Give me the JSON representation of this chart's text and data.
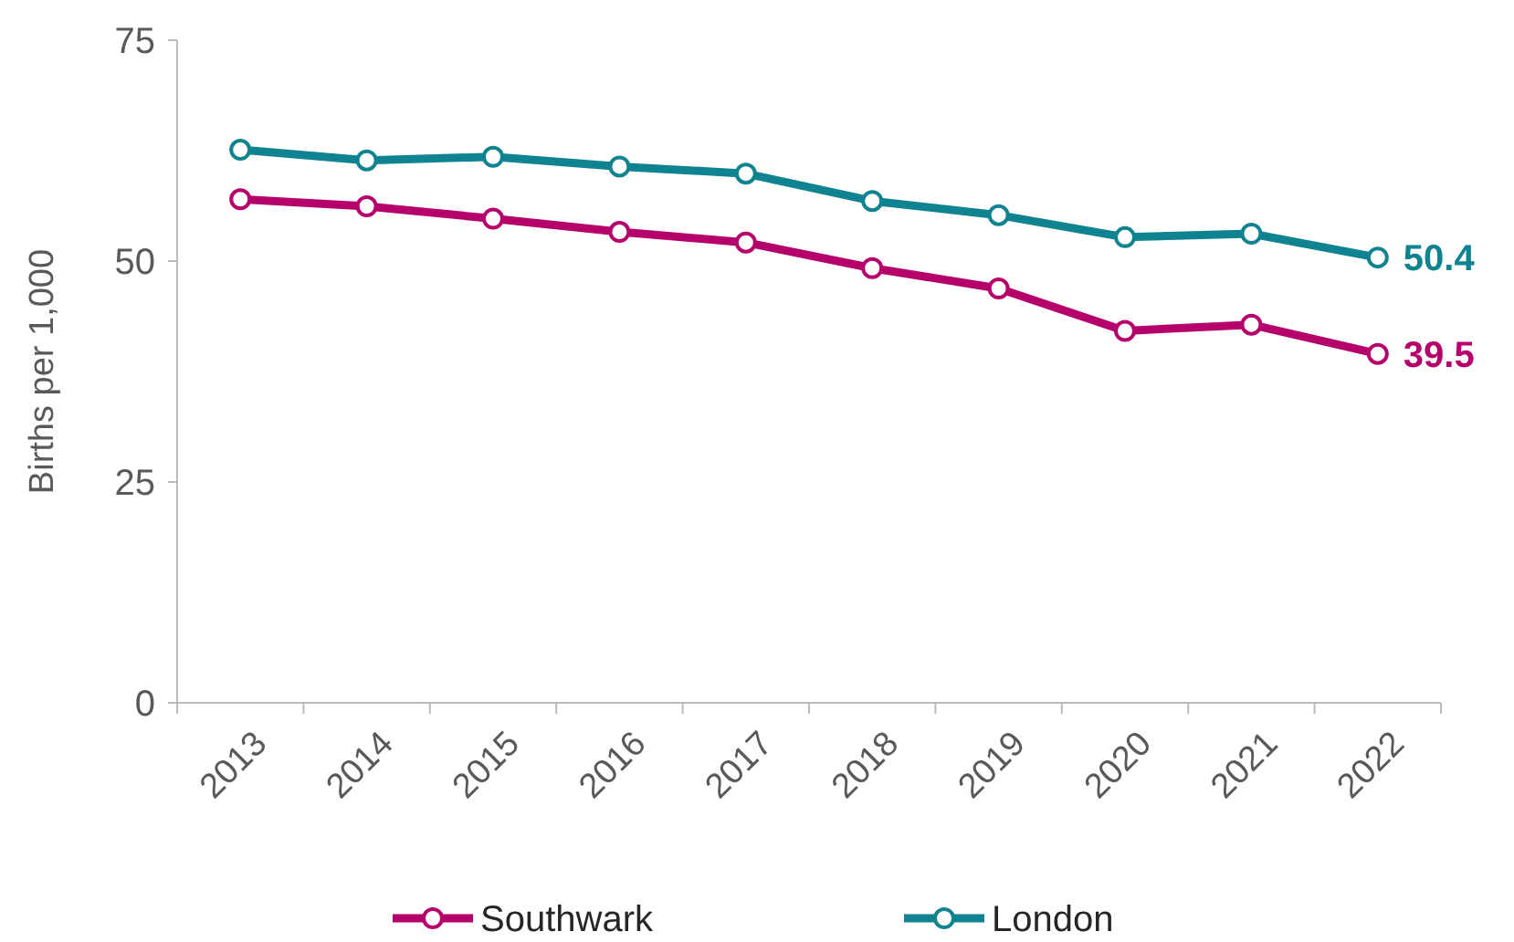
{
  "chart_data": {
    "type": "line",
    "ylabel": "Births per 1,000",
    "categories": [
      "2013",
      "2014",
      "2015",
      "2016",
      "2017",
      "2018",
      "2019",
      "2020",
      "2021",
      "2022"
    ],
    "series": [
      {
        "name": "Southwark",
        "color": "#b5006c",
        "values": [
          57.0,
          56.2,
          54.8,
          53.3,
          52.1,
          49.2,
          46.9,
          42.1,
          42.8,
          39.5
        ],
        "value_labels": [
          null,
          null,
          null,
          null,
          null,
          null,
          null,
          null,
          null,
          "39.5"
        ]
      },
      {
        "name": "London",
        "color": "#0f8490",
        "values": [
          62.6,
          61.4,
          61.8,
          60.7,
          59.9,
          56.8,
          55.2,
          52.7,
          53.1,
          50.4
        ],
        "value_labels": [
          null,
          null,
          null,
          null,
          null,
          null,
          null,
          null,
          null,
          "50.4"
        ]
      }
    ],
    "ylim": [
      0,
      75
    ],
    "yticks": [
      0,
      25,
      50,
      75
    ],
    "grid": false,
    "legend": "bottom",
    "marker": "circle",
    "line_style": "solid"
  }
}
